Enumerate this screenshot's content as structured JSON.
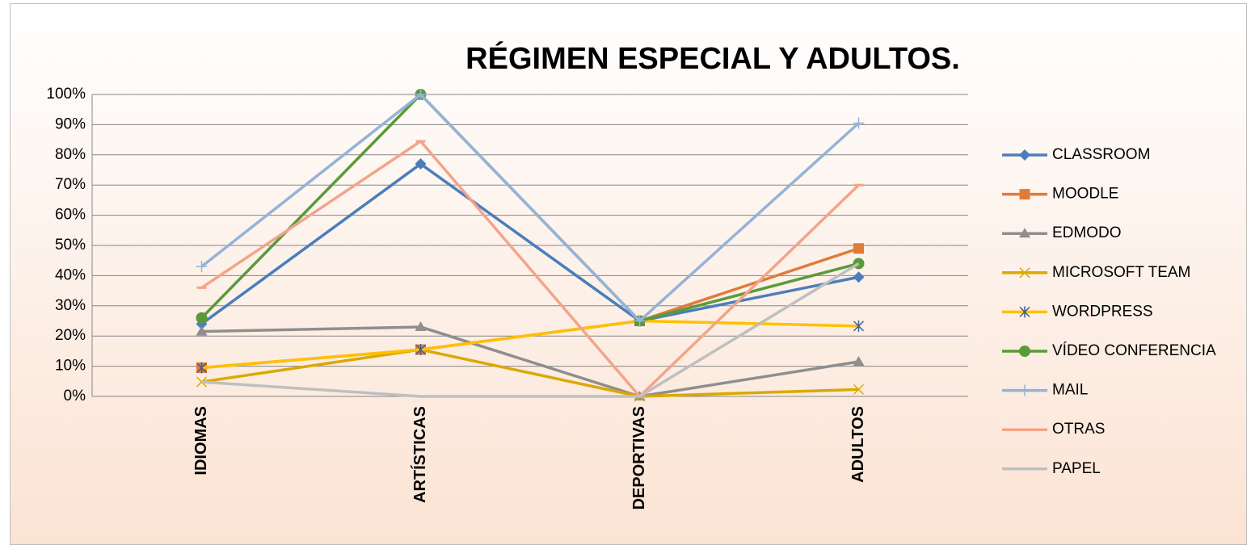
{
  "chart_data": {
    "type": "line",
    "title": "RÉGIMEN ESPECIAL Y ADULTOS.",
    "categories": [
      "IDIOMAS",
      "ARTÍSTICAS",
      "DEPORTIVAS",
      "ADULTOS"
    ],
    "ylim": [
      0,
      100
    ],
    "yticks": [
      {
        "value": 0,
        "label": "0%"
      },
      {
        "value": 10,
        "label": "10%"
      },
      {
        "value": 20,
        "label": "20%"
      },
      {
        "value": 30,
        "label": "30%"
      },
      {
        "value": 40,
        "label": "40%"
      },
      {
        "value": 50,
        "label": "50%"
      },
      {
        "value": 60,
        "label": "60%"
      },
      {
        "value": 70,
        "label": "70%"
      },
      {
        "value": 80,
        "label": "80%"
      },
      {
        "value": 90,
        "label": "90%"
      },
      {
        "value": 100,
        "label": "100%"
      }
    ],
    "grid": true,
    "legend": "right",
    "series": [
      {
        "name": "CLASSROOM",
        "color": "#4a7ebb",
        "marker": "diamond",
        "values": [
          24,
          77,
          25,
          39.5
        ]
      },
      {
        "name": "MOODLE",
        "color": "#e07b39",
        "marker": "square",
        "values": [
          9.5,
          15.5,
          25,
          49
        ]
      },
      {
        "name": "EDMODO",
        "color": "#8e8e8e",
        "marker": "triangle",
        "values": [
          21.5,
          23,
          0,
          11.5
        ]
      },
      {
        "name": "MICROSOFT TEAM",
        "color": "#dba800",
        "marker": "x",
        "values": [
          4.8,
          15.5,
          0,
          2.3
        ]
      },
      {
        "name": "WORDPRESS",
        "color": "#ffc000",
        "marker": "star",
        "values": [
          9.5,
          15.5,
          25,
          23.3
        ]
      },
      {
        "name": "VÍDEO CONFERENCIA",
        "color": "#5a9a3a",
        "marker": "circle",
        "values": [
          26,
          100,
          25,
          44
        ]
      },
      {
        "name": "MAIL",
        "color": "#95b3d7",
        "marker": "plus",
        "values": [
          43,
          100,
          25,
          90.5
        ]
      },
      {
        "name": "OTRAS",
        "color": "#f2a58a",
        "marker": "dash",
        "values": [
          36,
          84.5,
          0,
          70
        ]
      },
      {
        "name": "PAPEL",
        "color": "#bfbfbf",
        "marker": "none",
        "values": [
          4.8,
          0,
          0,
          44
        ]
      }
    ]
  }
}
